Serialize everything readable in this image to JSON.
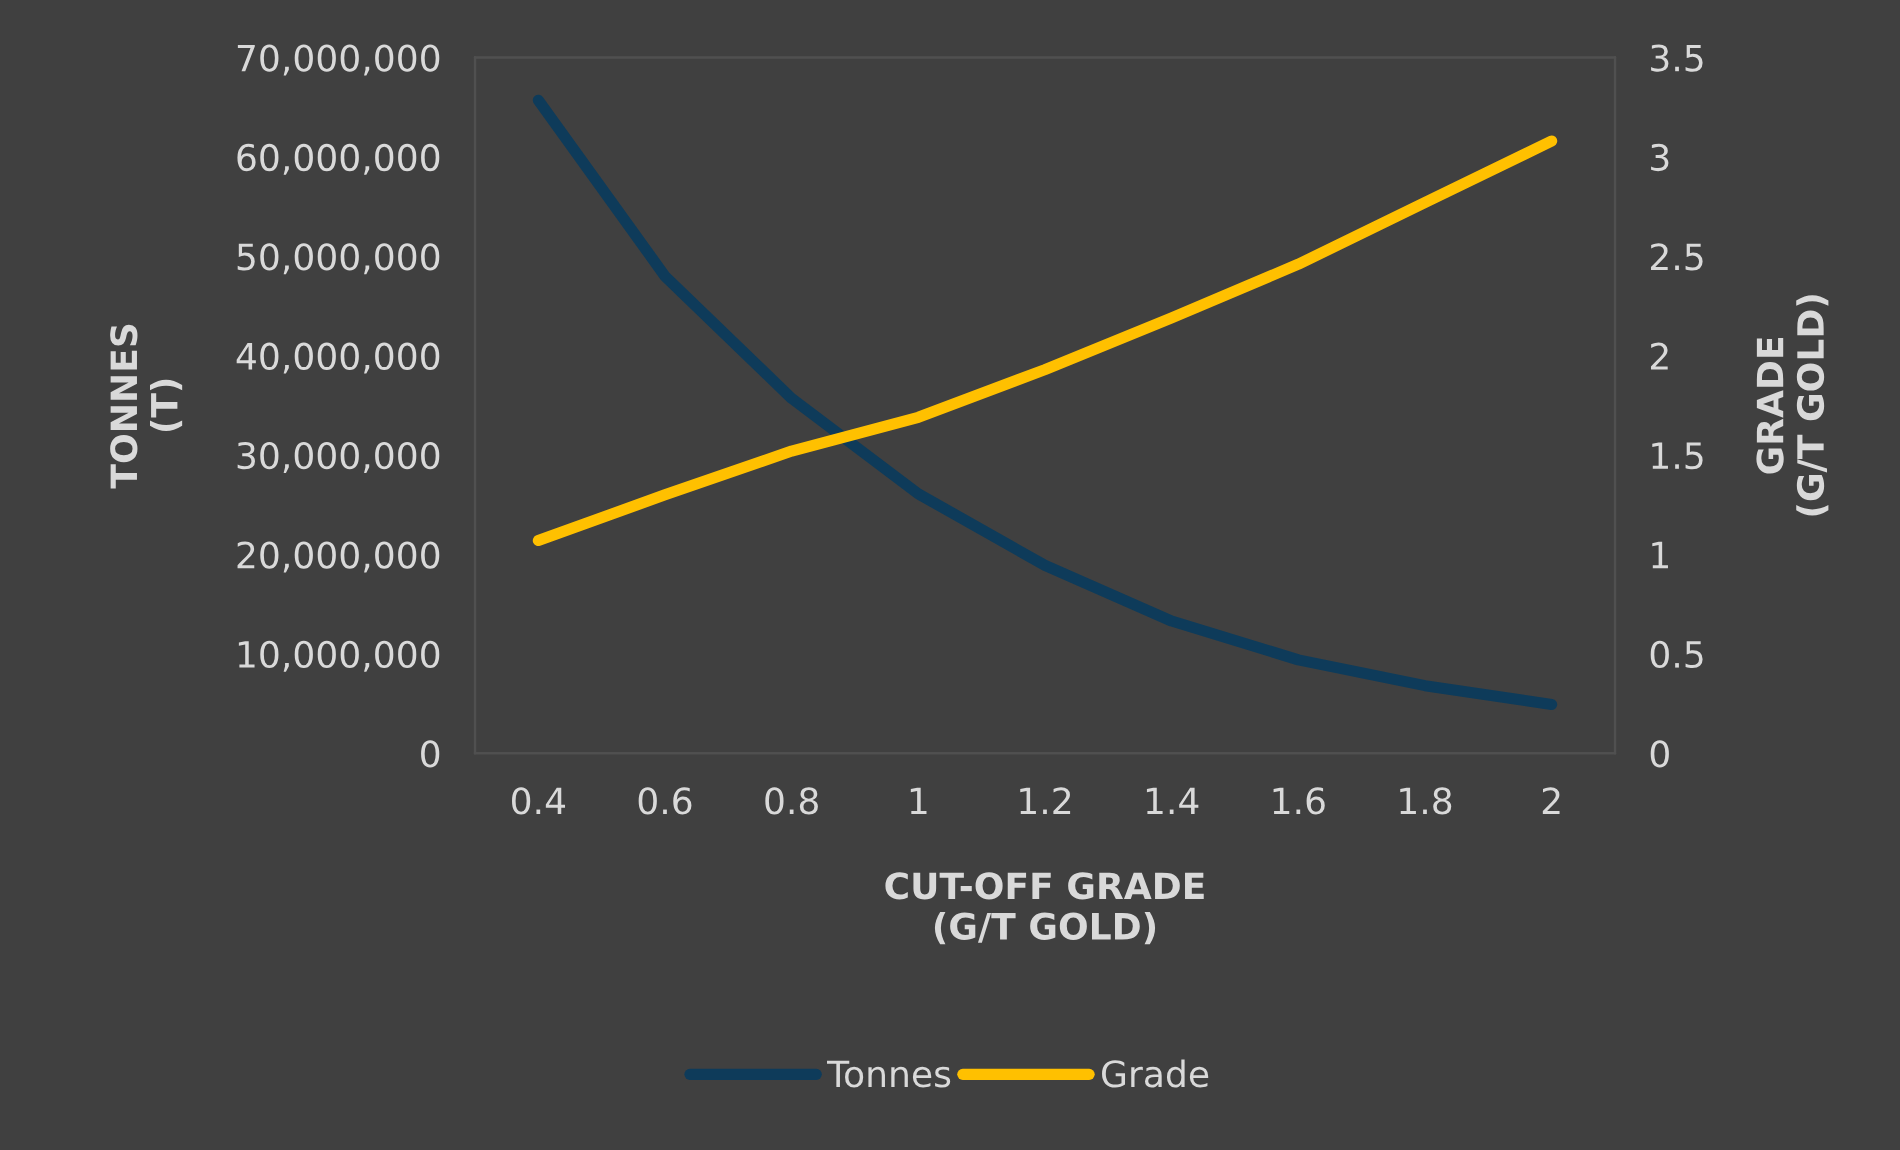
{
  "chart_data": {
    "type": "line",
    "xlabel": "CUT-OFF GRADE\n(G/T GOLD)",
    "ylabel": "TONNES\n(T)",
    "y2label": "GRADE\n(G/T GOLD)",
    "categories": [
      "0.4",
      "0.6",
      "0.8",
      "1",
      "1.2",
      "1.4",
      "1.6",
      "1.8",
      "2"
    ],
    "series": [
      {
        "name": "Tonnes",
        "color": "#0e3b5a",
        "values": [
          65700000,
          48000000,
          35700000,
          26100000,
          18900000,
          13300000,
          9400000,
          6800000,
          4900000
        ]
      },
      {
        "name": "Grade",
        "color": "#ffc000",
        "axis": "y2",
        "values": [
          1.07,
          1.3,
          1.52,
          1.69,
          1.93,
          2.19,
          2.46,
          2.77,
          3.08
        ]
      }
    ],
    "ylim": [
      0,
      70000000
    ],
    "yticks": [
      {
        "value": 0,
        "label": "0"
      },
      {
        "value": 10000000,
        "label": "10,000,000"
      },
      {
        "value": 20000000,
        "label": "20,000,000"
      },
      {
        "value": 30000000,
        "label": "30,000,000"
      },
      {
        "value": 40000000,
        "label": "40,000,000"
      },
      {
        "value": 50000000,
        "label": "50,000,000"
      },
      {
        "value": 60000000,
        "label": "60,000,000"
      },
      {
        "value": 70000000,
        "label": "70,000,000"
      }
    ],
    "y2lim": [
      0,
      3.5
    ],
    "y2ticks": [
      0,
      0.5,
      1,
      1.5,
      2,
      2.5,
      3,
      3.5
    ],
    "grid": false,
    "legend": "bottom",
    "marker": "none",
    "line_style": "solid"
  }
}
